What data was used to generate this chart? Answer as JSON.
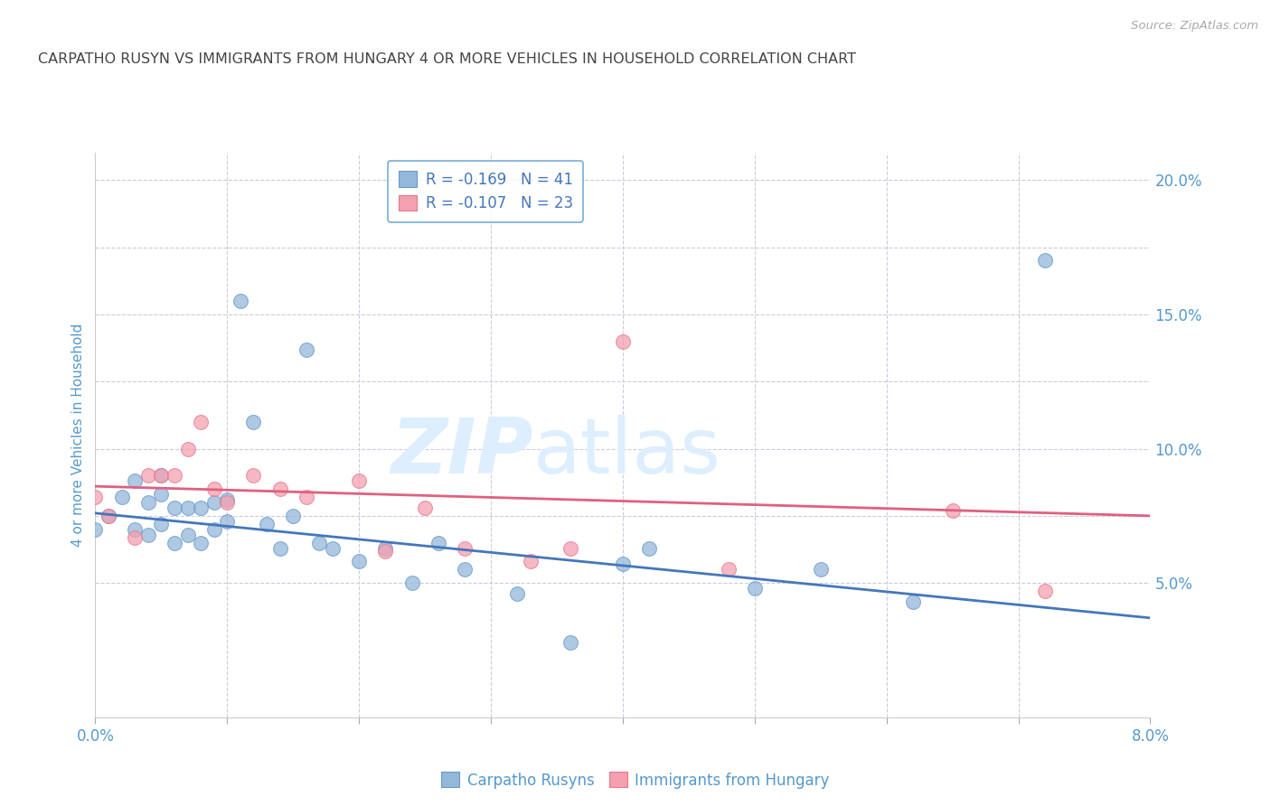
{
  "title": "CARPATHO RUSYN VS IMMIGRANTS FROM HUNGARY 4 OR MORE VEHICLES IN HOUSEHOLD CORRELATION CHART",
  "source": "Source: ZipAtlas.com",
  "ylabel": "4 or more Vehicles in Household",
  "xmin": 0.0,
  "xmax": 0.08,
  "ymin": 0.0,
  "ymax": 0.21,
  "legend_blue_r": "R = -0.169",
  "legend_blue_n": "N = 41",
  "legend_pink_r": "R = -0.107",
  "legend_pink_n": "N = 23",
  "blue_color": "#94B8D9",
  "pink_color": "#F4A0B0",
  "blue_edge_color": "#6699CC",
  "pink_edge_color": "#E8788A",
  "blue_line_color": "#4477BB",
  "pink_line_color": "#E06080",
  "title_color": "#444444",
  "source_color": "#aaaaaa",
  "axis_label_color": "#5599CC",
  "grid_color": "#CCCCDD",
  "watermark_color": "#DDDDEE",
  "blue_scatter_x": [
    0.0,
    0.001,
    0.002,
    0.003,
    0.003,
    0.004,
    0.004,
    0.005,
    0.005,
    0.005,
    0.006,
    0.006,
    0.007,
    0.007,
    0.008,
    0.008,
    0.009,
    0.009,
    0.01,
    0.01,
    0.011,
    0.012,
    0.013,
    0.014,
    0.015,
    0.016,
    0.017,
    0.018,
    0.02,
    0.022,
    0.024,
    0.026,
    0.028,
    0.032,
    0.036,
    0.04,
    0.042,
    0.05,
    0.055,
    0.062,
    0.072
  ],
  "blue_scatter_y": [
    0.07,
    0.075,
    0.082,
    0.07,
    0.088,
    0.068,
    0.08,
    0.072,
    0.083,
    0.09,
    0.065,
    0.078,
    0.068,
    0.078,
    0.065,
    0.078,
    0.07,
    0.08,
    0.073,
    0.081,
    0.155,
    0.11,
    0.072,
    0.063,
    0.075,
    0.137,
    0.065,
    0.063,
    0.058,
    0.063,
    0.05,
    0.065,
    0.055,
    0.046,
    0.028,
    0.057,
    0.063,
    0.048,
    0.055,
    0.043,
    0.17
  ],
  "pink_scatter_x": [
    0.0,
    0.001,
    0.003,
    0.004,
    0.005,
    0.006,
    0.007,
    0.008,
    0.009,
    0.01,
    0.012,
    0.014,
    0.016,
    0.02,
    0.022,
    0.025,
    0.028,
    0.033,
    0.036,
    0.04,
    0.048,
    0.065,
    0.072
  ],
  "pink_scatter_y": [
    0.082,
    0.075,
    0.067,
    0.09,
    0.09,
    0.09,
    0.1,
    0.11,
    0.085,
    0.08,
    0.09,
    0.085,
    0.082,
    0.088,
    0.062,
    0.078,
    0.063,
    0.058,
    0.063,
    0.14,
    0.055,
    0.077,
    0.047
  ],
  "blue_trendline_x": [
    0.0,
    0.08
  ],
  "blue_trendline_y": [
    0.076,
    0.037
  ],
  "pink_trendline_x": [
    0.0,
    0.08
  ],
  "pink_trendline_y": [
    0.086,
    0.075
  ]
}
